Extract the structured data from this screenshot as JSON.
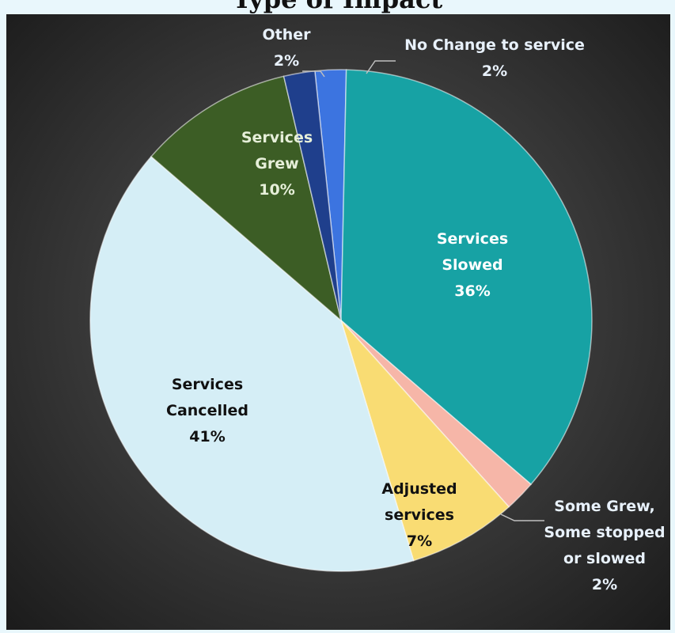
{
  "title": "Type of Impact",
  "chart_data": {
    "type": "pie",
    "title": "Type of Impact",
    "slices": [
      {
        "label_lines": [
          "No Change to service"
        ],
        "pct_label": "2%",
        "value": 2,
        "color": "#3c74e0",
        "label_color": "#e8f1fb"
      },
      {
        "label_lines": [
          "Services",
          "Slowed"
        ],
        "pct_label": "36%",
        "value": 36,
        "color": "#17a2a4",
        "label_color": "#ffffff"
      },
      {
        "label_lines": [
          "Some Grew,",
          "Some stopped",
          "or slowed"
        ],
        "pct_label": "2%",
        "value": 2,
        "color": "#f6b6a8",
        "label_color": "#e8f1fb"
      },
      {
        "label_lines": [
          "Adjusted",
          "services"
        ],
        "pct_label": "7%",
        "value": 7,
        "color": "#f9dc73",
        "label_color": "#111111"
      },
      {
        "label_lines": [
          "Services",
          "Cancelled"
        ],
        "pct_label": "41%",
        "value": 41,
        "color": "#d5eef6",
        "label_color": "#111111"
      },
      {
        "label_lines": [
          "Services",
          "Grew"
        ],
        "pct_label": "10%",
        "value": 10,
        "color": "#3c5d25",
        "label_color": "#e6efd9"
      },
      {
        "label_lines": [
          "Other"
        ],
        "pct_label": "2%",
        "value": 2,
        "color": "#1f3f8c",
        "label_color": "#e8f1fb"
      }
    ]
  }
}
